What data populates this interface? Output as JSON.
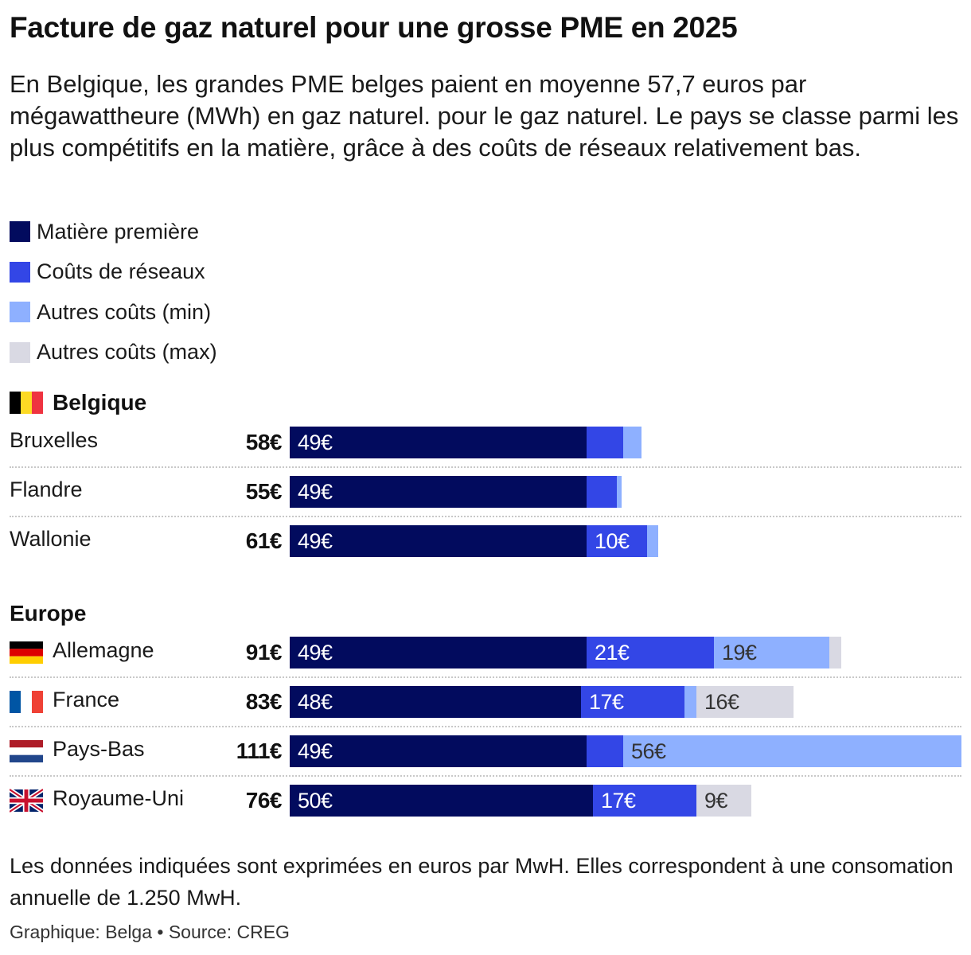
{
  "title": "Facture de gaz naturel pour une grosse PME en 2025",
  "subtitle": "En Belgique, les grandes PME belges paient en moyenne 57,7 euros par mégawattheure (MWh) en gaz naturel. pour le gaz naturel. Le pays se classe parmi les plus compétitifs en la matière, grâce à des coûts de réseaux relativement bas.",
  "colors": {
    "matiere": "#020b5e",
    "reseaux": "#3346e6",
    "autres_min": "#8eb0ff",
    "autres_max": "#d9d9e3",
    "label_dark_bg": "#ffffff",
    "label_light_bg": "#333333"
  },
  "legend": [
    {
      "label": "Matière première",
      "color": "#020b5e"
    },
    {
      "label": "Coûts de réseaux",
      "color": "#3346e6"
    },
    {
      "label": "Autres coûts (min)",
      "color": "#8eb0ff"
    },
    {
      "label": "Autres coûts (max)",
      "color": "#d9d9e3"
    }
  ],
  "footnote": "Les données indiquées sont exprimées en euros par MwH. Elles correspondent à une consomation annuelle de 1.250 MwH.",
  "credit": "Graphique: Belga • Source: CREG",
  "chart_data": {
    "type": "bar",
    "orientation": "horizontal",
    "stacked": true,
    "unit": "€/MWh",
    "series_names": [
      "Matière première",
      "Coûts de réseaux",
      "Autres coûts (min)",
      "Autres coûts (max)"
    ],
    "groups": [
      {
        "title": "Belgique",
        "flag": "be",
        "rows": [
          {
            "name": "Bruxelles",
            "total": "58€",
            "values": [
              49,
              6,
              3,
              0
            ],
            "labels": [
              "49€",
              "",
              "",
              ""
            ]
          },
          {
            "name": "Flandre",
            "total": "55€",
            "values": [
              49,
              5,
              0.8,
              0
            ],
            "labels": [
              "49€",
              "",
              "",
              ""
            ]
          },
          {
            "name": "Wallonie",
            "total": "61€",
            "values": [
              49,
              10,
              1.8,
              0
            ],
            "labels": [
              "49€",
              "10€",
              "",
              ""
            ]
          }
        ]
      },
      {
        "title": "Europe",
        "flag": "",
        "rows": [
          {
            "name": "Allemagne",
            "flag": "de",
            "total": "91€",
            "values": [
              49,
              21,
              19,
              2
            ],
            "labels": [
              "49€",
              "21€",
              "19€",
              ""
            ]
          },
          {
            "name": "France",
            "flag": "fr",
            "total": "83€",
            "values": [
              48,
              17,
              2,
              16
            ],
            "labels": [
              "48€",
              "17€",
              "",
              "16€"
            ]
          },
          {
            "name": "Pays-Bas",
            "flag": "nl",
            "total": "111€",
            "values": [
              49,
              6,
              56,
              0
            ],
            "labels": [
              "49€",
              "",
              "56€",
              ""
            ]
          },
          {
            "name": "Royaume-Uni",
            "flag": "gb",
            "total": "76€",
            "values": [
              50,
              17,
              0,
              9
            ],
            "labels": [
              "50€",
              "17€",
              "",
              "9€"
            ]
          }
        ]
      }
    ]
  }
}
